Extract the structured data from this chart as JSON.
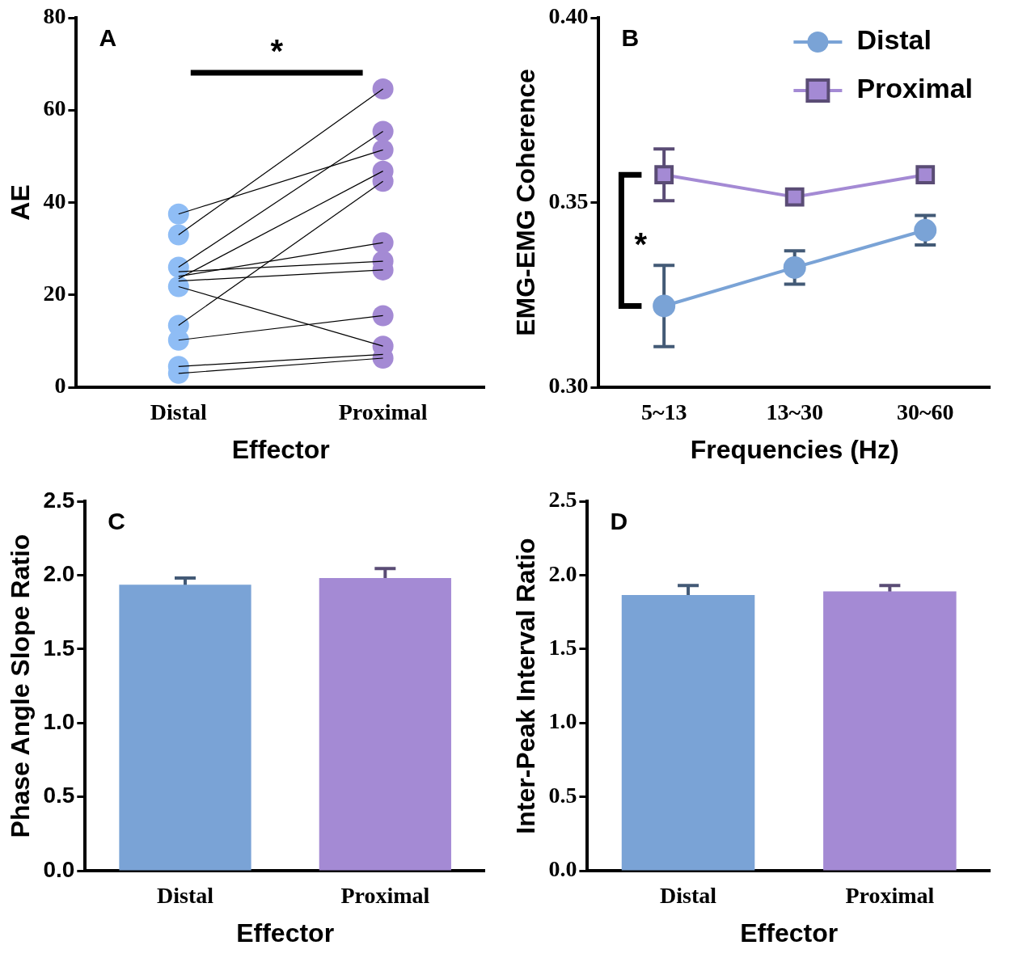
{
  "chart_data": [
    {
      "type": "scatter",
      "title": "A",
      "xlabel": "Effector",
      "ylabel": "AE",
      "categories": [
        "Distal",
        "Proximal"
      ],
      "ylim": [
        0,
        80
      ],
      "yticks": [
        0,
        20,
        40,
        60,
        80
      ],
      "grid": false,
      "legend": false,
      "annotations": [
        "*"
      ],
      "series": [
        {
          "type": "line",
          "color": "#000000",
          "values": [
            37.5,
            51.4
          ]
        },
        {
          "type": "line",
          "color": "#000000",
          "values": [
            33,
            64.6
          ]
        },
        {
          "type": "line",
          "color": "#000000",
          "values": [
            26,
            55.4
          ]
        },
        {
          "type": "line",
          "color": "#000000",
          "values": [
            25,
            27.3
          ]
        },
        {
          "type": "line",
          "color": "#000000",
          "values": [
            24,
            31.3
          ]
        },
        {
          "type": "line",
          "color": "#000000",
          "values": [
            23.5,
            46.8
          ]
        },
        {
          "type": "line",
          "color": "#000000",
          "values": [
            23,
            25.4
          ]
        },
        {
          "type": "line",
          "color": "#000000",
          "values": [
            21.8,
            8.9
          ]
        },
        {
          "type": "line",
          "color": "#000000",
          "values": [
            13.4,
            44.6
          ]
        },
        {
          "type": "line",
          "color": "#000000",
          "values": [
            10.2,
            15.5
          ]
        },
        {
          "type": "line",
          "color": "#000000",
          "values": [
            4.5,
            7.1
          ]
        },
        {
          "type": "line",
          "color": "#000000",
          "values": [
            3,
            6.3
          ]
        },
        {
          "type": "scatter",
          "color": "#8fbdf5",
          "marker": "circle",
          "x": [
            "Distal",
            "Distal",
            "Distal",
            "Distal",
            "Distal",
            "Distal",
            "Distal",
            "Distal",
            "Distal",
            "Distal",
            "Distal",
            "Distal"
          ],
          "values": [
            37.5,
            33,
            26,
            null,
            null,
            null,
            null,
            21.8,
            13.4,
            10.2,
            4.5,
            3
          ]
        },
        {
          "type": "scatter",
          "color": "#a48ad4",
          "marker": "circle",
          "x": [
            "Proximal",
            "Proximal",
            "Proximal",
            "Proximal",
            "Proximal",
            "Proximal",
            "Proximal",
            "Proximal",
            "Proximal",
            "Proximal",
            "Proximal",
            "Proximal"
          ],
          "values": [
            51.4,
            64.6,
            55.4,
            27.3,
            31.3,
            46.8,
            25.4,
            8.9,
            44.6,
            15.5,
            null,
            6.3
          ]
        }
      ]
    },
    {
      "type": "line",
      "title": "B",
      "xlabel": "Frequencies (Hz)",
      "ylabel": "EMG-EMG Coherence",
      "categories": [
        "5~13",
        "13~30",
        "30~60"
      ],
      "ylim": [
        0.3,
        0.4
      ],
      "yticks": [
        {
          "value": 0.3,
          "label": "0.30"
        },
        {
          "value": 0.35,
          "label": "0.35"
        },
        {
          "value": 0.4,
          "label": "0.40"
        }
      ],
      "grid": false,
      "legend": "top right",
      "annotations": [
        "*"
      ],
      "series": [
        {
          "name": "Distal",
          "color": "#7aa3d6",
          "marker": "circle",
          "values": [
            0.322,
            0.3324,
            0.3425
          ],
          "errors": [
            0.011,
            0.0045,
            0.004
          ]
        },
        {
          "name": "Proximal",
          "color": "#a48ad4",
          "marker": "square",
          "values": [
            0.3575,
            0.3515,
            0.3575
          ],
          "errors": [
            0.007,
            null,
            null
          ]
        }
      ]
    },
    {
      "type": "bar",
      "title": "C",
      "xlabel": "Effector",
      "ylabel": "Phase Angle Slope Ratio",
      "categories": [
        "Distal",
        "Proximal"
      ],
      "values": [
        1.935,
        1.98
      ],
      "errors": [
        0.045,
        0.065
      ],
      "colors": [
        "#7aa3d6",
        "#a48ad4"
      ],
      "ylim": [
        0,
        2.5
      ],
      "yticks": [
        {
          "value": 0,
          "label": "0.0"
        },
        {
          "value": 0.5,
          "label": "0.5"
        },
        {
          "value": 1,
          "label": "1.0"
        },
        {
          "value": 1.5,
          "label": "1.5"
        },
        {
          "value": 2,
          "label": "2.0"
        },
        {
          "value": 2.5,
          "label": "2.5"
        }
      ],
      "grid": false,
      "legend": false
    },
    {
      "type": "bar",
      "title": "D",
      "xlabel": "Effector",
      "ylabel": "Inter-Peak Interval Ratio",
      "categories": [
        "Distal",
        "Proximal"
      ],
      "values": [
        1.865,
        1.89
      ],
      "errors": [
        0.065,
        0.04
      ],
      "colors": [
        "#7aa3d6",
        "#a48ad4"
      ],
      "ylim": [
        0,
        2.5
      ],
      "yticks": [
        {
          "value": 0,
          "label": "0.0"
        },
        {
          "value": 0.5,
          "label": "0.5"
        },
        {
          "value": 1,
          "label": "1.0"
        },
        {
          "value": 1.5,
          "label": "1.5"
        },
        {
          "value": 2,
          "label": "2.0"
        },
        {
          "value": 2.5,
          "label": "2.5"
        }
      ],
      "grid": false,
      "legend": false
    }
  ]
}
